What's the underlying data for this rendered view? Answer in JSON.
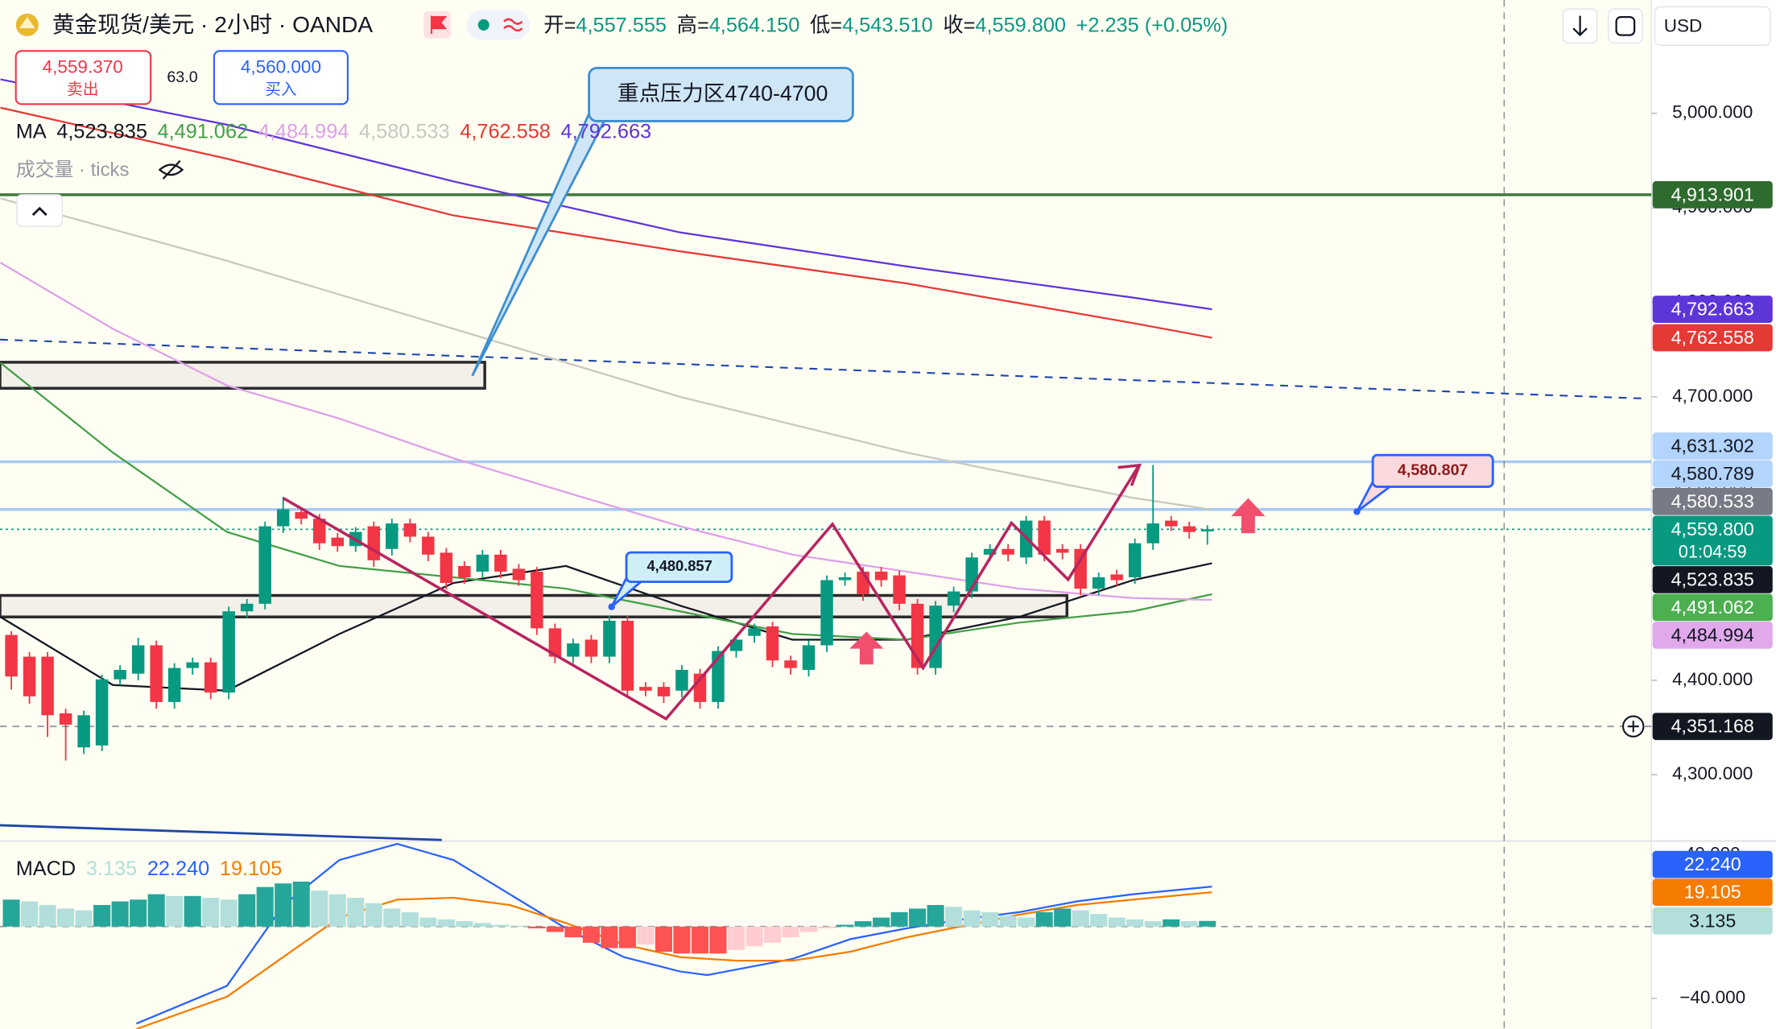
{
  "header": {
    "title": "黄金现货/美元 · 2小时 · OANDA",
    "ohlc": [
      {
        "label": "开=",
        "value": "4,557.555"
      },
      {
        "label": "高=",
        "value": "4,564.150"
      },
      {
        "label": "低=",
        "value": "4,543.510"
      },
      {
        "label": "收=",
        "value": "4,559.800"
      }
    ],
    "change": "+2.235 (+0.05%)",
    "currency": "USD",
    "sell": {
      "price": "4,559.370",
      "label": "卖出"
    },
    "spread": "63.0",
    "buy": {
      "price": "4,560.000",
      "label": "买入"
    },
    "volume_label": "成交量 · ticks"
  },
  "annotations": [
    "重点压力区4740-4700",
    "4,480.857",
    "4,580.807"
  ],
  "chart_data": [
    {
      "type": "candlestick",
      "legend_title": "MA",
      "up_color": "#089981",
      "down_color": "#f23645",
      "open": [
        4448,
        4425,
        4425,
        4365,
        4329,
        4331,
        4401,
        4407,
        4437,
        4377,
        4413,
        4419,
        4387,
        4473,
        4481,
        4563,
        4578,
        4571,
        4551,
        4542,
        4563,
        4539,
        4566,
        4552,
        4535,
        4521,
        4515,
        4533,
        4518,
        4515,
        4455,
        4425,
        4443,
        4425,
        4463,
        4393,
        4393,
        4389,
        4407,
        4377,
        4431,
        4447,
        4457,
        4421,
        4411,
        4437,
        4506,
        4515,
        4515,
        4511,
        4481,
        4413,
        4479,
        4494,
        4533,
        4539,
        4530,
        4569,
        4539,
        4539,
        4497,
        4512,
        4509,
        4545,
        4569,
        4563,
        4557.555
      ],
      "high": [
        4452,
        4430,
        4430,
        4370,
        4368,
        4406,
        4416,
        4445,
        4442,
        4418,
        4424,
        4424,
        4478,
        4486,
        4568,
        4594,
        4580,
        4576,
        4556,
        4562,
        4568,
        4571,
        4571,
        4557,
        4540,
        4526,
        4538,
        4538,
        4523,
        4520,
        4460,
        4444,
        4448,
        4468,
        4468,
        4398,
        4398,
        4416,
        4412,
        4436,
        4448,
        4460,
        4462,
        4426,
        4442,
        4511,
        4514,
        4520,
        4520,
        4516,
        4486,
        4484,
        4499,
        4535,
        4544,
        4544,
        4574,
        4574,
        4544,
        4544,
        4514,
        4517,
        4550,
        4628,
        4574,
        4568,
        4564.15
      ],
      "low": [
        4390,
        4375,
        4340,
        4315,
        4322,
        4325,
        4395,
        4400,
        4370,
        4370,
        4406,
        4380,
        4380,
        4466,
        4475,
        4556,
        4565,
        4538,
        4536,
        4536,
        4520,
        4532,
        4546,
        4526,
        4496,
        4502,
        4508,
        4508,
        4500,
        4448,
        4418,
        4418,
        4418,
        4418,
        4382,
        4383,
        4376,
        4382,
        4370,
        4370,
        4424,
        4440,
        4414,
        4406,
        4404,
        4430,
        4500,
        4484,
        4499,
        4474,
        4406,
        4406,
        4472,
        4487,
        4526,
        4526,
        4523,
        4526,
        4528,
        4490,
        4490,
        4500,
        4502,
        4538,
        4558,
        4550,
        4543.51
      ],
      "close": [
        4404,
        4383,
        4363,
        4353,
        4363,
        4401,
        4411,
        4437,
        4377,
        4413,
        4419,
        4387,
        4473,
        4481,
        4563,
        4581,
        4571,
        4545,
        4542,
        4557,
        4527,
        4566,
        4552,
        4533,
        4503,
        4509,
        4533,
        4515,
        4506,
        4455,
        4425,
        4439,
        4425,
        4463,
        4389,
        4389,
        4383,
        4411,
        4377,
        4431,
        4443,
        4455,
        4421,
        4413,
        4437,
        4506,
        4509,
        4491,
        4506,
        4481,
        4413,
        4479,
        4494,
        4530,
        4539,
        4533,
        4569,
        4533,
        4535,
        4497,
        4509,
        4506,
        4545,
        4566,
        4563,
        4557,
        4559.8
      ],
      "ylim": [
        4231,
        5120
      ],
      "yticks": [
        {
          "value": 4300,
          "label": "4,300.000"
        },
        {
          "value": 4400,
          "label": "4,400.000"
        },
        {
          "value": 4500,
          "label": "4,500.000"
        },
        {
          "value": 4600,
          "label": "4,600.000"
        },
        {
          "value": 4700,
          "label": "4,700.000"
        },
        {
          "value": 4800,
          "label": "4,800.000"
        },
        {
          "value": 4900,
          "label": "4,900.000"
        },
        {
          "value": 5000,
          "label": "5,000.000"
        }
      ],
      "series": [
        {
          "name": "4,523.835",
          "color": "#131722",
          "x": [
            -0.6,
            5.6,
            11.9,
            18.1,
            24.4,
            30.6,
            36.9,
            43.1,
            49.4,
            55.6,
            61.9,
            66.25
          ],
          "values": [
            4467,
            4395,
            4389,
            4449,
            4503,
            4521,
            4479,
            4443,
            4443,
            4467,
            4506,
            4523.835
          ]
        },
        {
          "name": "4,491.062",
          "color": "#43a047",
          "x": [
            -0.6,
            5.6,
            11.9,
            18.1,
            24.4,
            30.6,
            36.9,
            43.1,
            49.4,
            55.6,
            61.9,
            66.25
          ],
          "values": [
            4736,
            4641,
            4557,
            4521,
            4509,
            4497,
            4473,
            4449,
            4443,
            4461,
            4473,
            4491.062
          ]
        },
        {
          "name": "4,484.994",
          "color": "#dda0e8",
          "x": [
            -0.6,
            5.6,
            11.9,
            18.1,
            24.4,
            30.6,
            36.9,
            43.1,
            49.4,
            55.6,
            61.9,
            66.25
          ],
          "values": [
            4842,
            4772,
            4712,
            4677,
            4635,
            4599,
            4563,
            4533,
            4515,
            4497,
            4487,
            4484.994
          ]
        },
        {
          "name": "4,580.533",
          "color": "#c8c8c0",
          "x": [
            -0.6,
            11.9,
            24.4,
            36.9,
            49.4,
            61.9,
            66.25
          ],
          "values": [
            4910,
            4844,
            4772,
            4700,
            4641,
            4593,
            4580.533
          ]
        },
        {
          "name": "4,762.558",
          "color": "#e53935",
          "x": [
            -0.6,
            11.9,
            24.4,
            36.9,
            49.4,
            61.9,
            66.25
          ],
          "values": [
            5006,
            4952,
            4892,
            4854,
            4820,
            4778,
            4762.558
          ]
        },
        {
          "name": "4,792.663",
          "color": "#5e35d8",
          "x": [
            -0.6,
            11.9,
            24.4,
            36.9,
            49.4,
            61.9,
            66.25
          ],
          "values": [
            5036,
            4988,
            4928,
            4874,
            4838,
            4805,
            4792.663
          ]
        }
      ],
      "levels": [
        {
          "value": 4913.901,
          "color": "#3f7a3a",
          "style": "solid"
        },
        {
          "value": 4631.302,
          "color": "#a9c9f5",
          "style": "solid"
        },
        {
          "value": 4580.789,
          "color": "#a9c9f5",
          "style": "solid"
        },
        {
          "value": 4559.8,
          "color": "#089981",
          "style": "dotted"
        },
        {
          "value": 4351.168,
          "color": "#9598a1",
          "style": "dashed"
        }
      ],
      "price_tags": [
        {
          "value": 4913.901,
          "label": "4,913.901",
          "color": "#2e6b2e",
          "text_color": "#ffffff"
        },
        {
          "value": 4792.663,
          "label": "4,792.663",
          "color": "#5e35d8",
          "text_color": "#ffffff"
        },
        {
          "value": 4762.558,
          "label": "4,762.558",
          "color": "#e53935",
          "text_color": "#ffffff"
        },
        {
          "value": 4631.302,
          "label": "4,631.302",
          "color": "#b3d4fc",
          "text_color": "#131722"
        },
        {
          "value": 4580.789,
          "label": "4,580.789",
          "color": "#b3d4fc",
          "text_color": "#131722"
        },
        {
          "value": 4580.533,
          "label": "4,580.533",
          "color": "#787b86",
          "text_color": "#ffffff"
        },
        {
          "value": 4559.8,
          "label": "4,559.800",
          "sublabel": "01:04:59",
          "color": "#089981",
          "text_color": "#ffffff"
        },
        {
          "value": 4523.835,
          "label": "4,523.835",
          "color": "#131722",
          "text_color": "#ffffff"
        },
        {
          "value": 4491.062,
          "label": "4,491.062",
          "color": "#4caf50",
          "text_color": "#ffffff"
        },
        {
          "value": 4484.994,
          "label": "4,484.994",
          "color": "#e1a9ec",
          "text_color": "#131722"
        },
        {
          "value": 4351.168,
          "label": "4,351.168",
          "color": "#131722",
          "text_color": "#ffffff"
        }
      ]
    },
    {
      "type": "macd",
      "title": "MACD",
      "histogram_label": "3.135",
      "histogram_colors": [
        "#26a69a",
        "#b2dfdb",
        "#ff5252",
        "#ffcdd2"
      ],
      "histogram": [
        15,
        14,
        12,
        10,
        9,
        12,
        14,
        15,
        18,
        17,
        17,
        16,
        15,
        18,
        22,
        24,
        25,
        20,
        18,
        16,
        13,
        10,
        8,
        5,
        4,
        3,
        2,
        1,
        0.5,
        -1,
        -3,
        -6,
        -9,
        -12,
        -12,
        -10,
        -14,
        -15,
        -15,
        -15,
        -13,
        -11,
        -9,
        -6,
        -3,
        -1,
        1,
        3,
        5,
        8,
        10,
        12,
        11,
        9,
        8,
        6,
        5,
        8,
        10,
        9,
        7,
        5,
        4,
        3,
        4,
        3,
        3.135
      ],
      "series": [
        {
          "name": "22.240",
          "color": "#2962ff",
          "x": [
            6.9,
            11.9,
            15,
            18.1,
            21.3,
            24.4,
            27.5,
            30.6,
            33.8,
            36.9,
            38.4,
            43.1,
            46.3,
            49.4,
            52.5,
            55.6,
            58.8,
            61.9,
            66.25
          ],
          "values": [
            -54,
            -33,
            11.7,
            37,
            46,
            37,
            18,
            -1,
            -17,
            -25,
            -27,
            -18,
            -7,
            -1,
            4,
            8,
            14,
            18,
            22.24
          ]
        },
        {
          "name": "19.105",
          "color": "#f57c00",
          "x": [
            6.9,
            11.9,
            15,
            18.1,
            21.3,
            24.4,
            27.5,
            30.6,
            33.8,
            36.9,
            40,
            43.1,
            46.3,
            49.4,
            52.5,
            55.6,
            58.8,
            61.9,
            66.25
          ],
          "values": [
            -57,
            -39,
            -17,
            5,
            15,
            16,
            12,
            2,
            -10,
            -17,
            -19,
            -19,
            -14,
            -6,
            0.3,
            6.6,
            12,
            15,
            19.105
          ]
        }
      ],
      "ylim": [
        -57,
        46.3
      ],
      "yticks": [
        {
          "value": -40,
          "label": "−40.000"
        },
        {
          "value": 40,
          "label": "40.000"
        }
      ],
      "levels": [
        {
          "value": 0,
          "color": "#9598a1",
          "style": "dashed"
        }
      ],
      "price_tags": [
        {
          "value": 22.24,
          "label": "22.240",
          "color": "#2962ff",
          "text_color": "#ffffff"
        },
        {
          "value": 19.105,
          "label": "19.105",
          "color": "#f57c00",
          "text_color": "#ffffff"
        },
        {
          "value": 3.135,
          "label": "3.135",
          "color": "#b2dfdb",
          "text_color": "#131722"
        }
      ]
    }
  ]
}
